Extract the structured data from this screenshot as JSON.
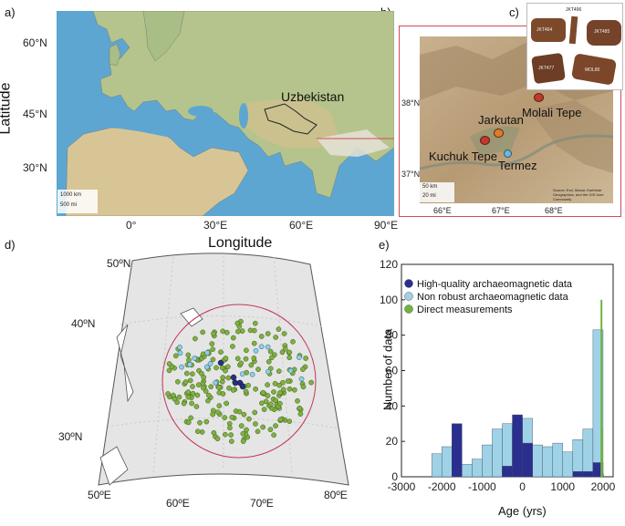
{
  "panel_labels": {
    "a": "a)",
    "b": "b)",
    "c": "c)",
    "d": "d)",
    "e": "e)"
  },
  "map_a": {
    "y_ticks": [
      "60°N",
      "45°N",
      "30°N"
    ],
    "x_ticks": [
      "0°",
      "30°E",
      "60°E",
      "90°E"
    ],
    "xlabel": "Longitude",
    "ylabel": "Latitude",
    "region_label": "Uzbekistan",
    "scale_1": "1000 km",
    "scale_2": "500 mi",
    "colors": {
      "ocean": "#5aa2cf",
      "land": "#b7c58f",
      "desert": "#d9c89b"
    }
  },
  "map_b": {
    "y_ticks": [
      "38°N",
      "37°N"
    ],
    "x_ticks": [
      "66°E",
      "67°E",
      "68°E"
    ],
    "sites": [
      {
        "name": "Jarkutan",
        "color": "#e07a2a"
      },
      {
        "name": "Molali Tepe",
        "color": "#c0392b"
      },
      {
        "name": "Kuchuk Tepe",
        "color": "#c0392b"
      },
      {
        "name": "Termez",
        "color": "#6fb6d9"
      }
    ],
    "scale_1": "50 km",
    "scale_2": "20 mi",
    "credit": "Source: Esri, Maxar, Earthstar Geographics, and the GIS User Community"
  },
  "panel_c": {
    "samples": [
      "JKT496",
      "JKT464",
      "JKT485",
      "JKT477",
      "MOL80"
    ]
  },
  "map_d": {
    "lat_ticks": [
      "50ºN",
      "40ºN",
      "30ºN"
    ],
    "lon_ticks": [
      "50ºE",
      "60ºE",
      "70ºE",
      "80ºE"
    ],
    "colors": {
      "direct": "#7fb040",
      "nonrobust": "#8ecfe8",
      "hq": "#23308a",
      "circle": "#c0395a"
    }
  },
  "chart_data": {
    "type": "bar",
    "xlabel": "Age (yrs)",
    "ylabel": "Number of data",
    "xlim": [
      -3000,
      2250
    ],
    "ylim": [
      0,
      120
    ],
    "x_ticks": [
      "-3000",
      "-2000",
      "-1000",
      "0",
      "1000",
      "2000"
    ],
    "y_ticks": [
      "0",
      "20",
      "40",
      "60",
      "80",
      "100",
      "120"
    ],
    "bin_width": 250,
    "legend_position": "top-left",
    "series": [
      {
        "name": "Non robust archaeomagnetic data",
        "color": "#9fd2e6",
        "bins": [
          [
            -2250,
            13
          ],
          [
            -2000,
            17
          ],
          [
            -1750,
            19
          ],
          [
            -1500,
            7
          ],
          [
            -1250,
            10
          ],
          [
            -1000,
            18
          ],
          [
            -750,
            27
          ],
          [
            -500,
            30
          ],
          [
            -250,
            27
          ],
          [
            0,
            33
          ],
          [
            250,
            18
          ],
          [
            500,
            17
          ],
          [
            750,
            19
          ],
          [
            1000,
            14
          ],
          [
            1250,
            21
          ],
          [
            1500,
            27
          ],
          [
            1750,
            83
          ]
        ]
      },
      {
        "name": "High-quality archaeomagnetic data",
        "color": "#2a2f8f",
        "bins": [
          [
            -1750,
            30
          ],
          [
            -500,
            6
          ],
          [
            -250,
            35
          ],
          [
            0,
            19
          ],
          [
            1250,
            3
          ],
          [
            1500,
            3
          ],
          [
            1750,
            8
          ]
        ]
      },
      {
        "name": "Direct measurements",
        "color": "#6fb43f",
        "lines": [
          [
            1960,
            100
          ],
          [
            1975,
            27
          ]
        ]
      }
    ]
  }
}
